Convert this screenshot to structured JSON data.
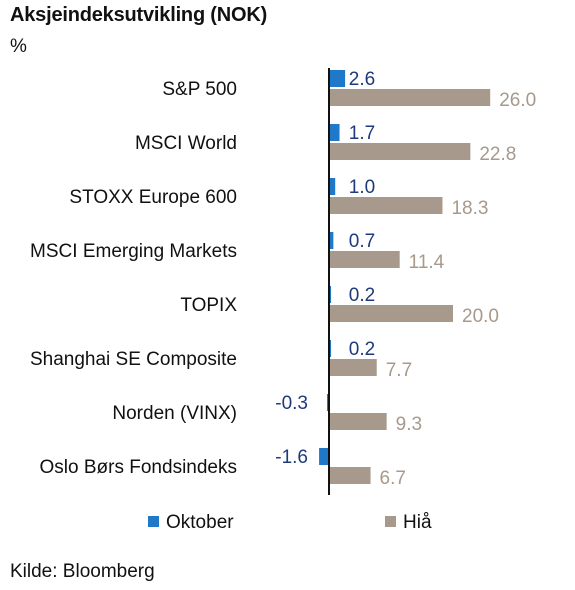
{
  "chart_data": {
    "type": "bar",
    "orientation": "horizontal",
    "title": "Aksjeindeksutvikling (NOK)",
    "unit": "%",
    "categories": [
      "S&P 500",
      "MSCI World",
      "STOXX Europe 600",
      "MSCI Emerging Markets",
      "TOPIX",
      "Shanghai SE Composite",
      "Norden (VINX)",
      "Oslo Børs Fondsindeks"
    ],
    "series": [
      {
        "name": "Oktober",
        "color": "#1f78c8",
        "label_color": "#1f3a7a",
        "values": [
          2.6,
          1.7,
          1.0,
          0.7,
          0.2,
          0.2,
          -0.3,
          -1.6
        ],
        "labels": [
          "2.6",
          "1.7",
          "1.0",
          "0.7",
          "0.2",
          "0.2",
          "-0.3",
          "-1.6"
        ]
      },
      {
        "name": "Hiå",
        "color": "#a7998b",
        "label_color": "#a7998b",
        "values": [
          26.0,
          22.8,
          18.3,
          11.4,
          20.0,
          7.7,
          9.3,
          6.7
        ],
        "labels": [
          "26.0",
          "22.8",
          "18.3",
          "11.4",
          "20.0",
          "7.7",
          "9.3",
          "6.7"
        ]
      }
    ],
    "xlabel": "",
    "ylabel": "",
    "xlim": [
      -3.5,
      28
    ],
    "grid": false,
    "legend_position": "bottom",
    "source": "Kilde: Bloomberg"
  }
}
